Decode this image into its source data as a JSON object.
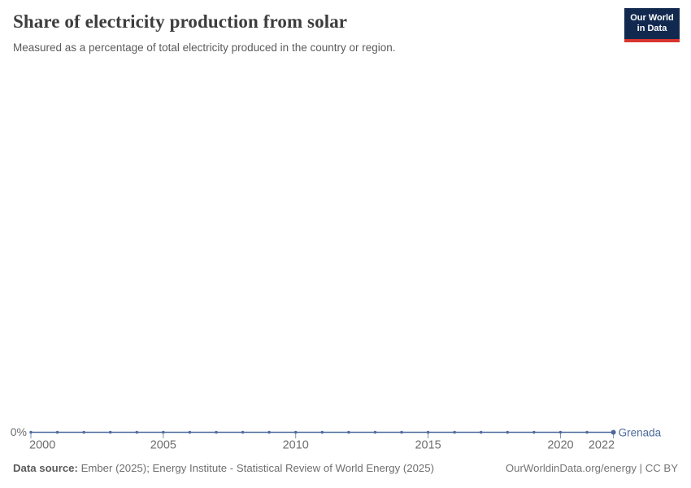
{
  "header": {
    "title": "Share of electricity production from solar",
    "subtitle": "Measured as a percentage of total electricity produced in the country or region.",
    "logo": {
      "line1": "Our World",
      "line2": "in Data"
    }
  },
  "chart_data": {
    "type": "line",
    "title": "Share of electricity production from solar",
    "subtitle": "Measured as a percentage of total electricity produced in the country or region.",
    "x": [
      2000,
      2001,
      2002,
      2003,
      2004,
      2005,
      2006,
      2007,
      2008,
      2009,
      2010,
      2011,
      2012,
      2013,
      2014,
      2015,
      2016,
      2017,
      2018,
      2019,
      2020,
      2021,
      2022
    ],
    "series": [
      {
        "name": "Grenada",
        "values": [
          0,
          0,
          0,
          0,
          0,
          0,
          0,
          0,
          0,
          0,
          0,
          0,
          0,
          0,
          0,
          0,
          0,
          0,
          0,
          0,
          0,
          0,
          0
        ]
      }
    ],
    "x_ticks": [
      2000,
      2005,
      2010,
      2015,
      2020,
      2022
    ],
    "xlim": [
      2000,
      2022
    ],
    "y_tick_labels": [
      "0%"
    ],
    "unit": "%",
    "grid": false,
    "legend_position": "right-of-line-end",
    "markers": true
  },
  "colors": {
    "line": "#4c6a9c",
    "series_label": "#4c6a9c",
    "axis_text": "#6e6e6e",
    "tick_mark": "#7d91b4",
    "title_text": "#3d3d3d",
    "subtitle_text": "#5b5b5b",
    "logo_bg": "#12294f",
    "logo_accent": "#d8352f"
  },
  "footer": {
    "source_label": "Data source:",
    "source_text": "Ember (2025); Energy Institute - Statistical Review of World Energy (2025)",
    "link_text": "OurWorldinData.org/energy | CC BY"
  }
}
